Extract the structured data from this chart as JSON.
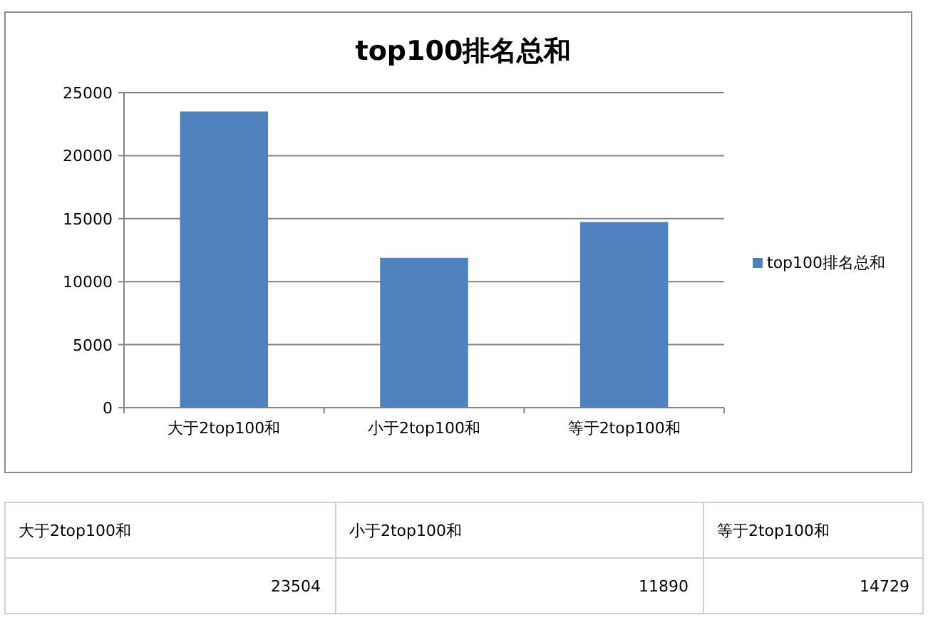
{
  "chart_data": {
    "type": "bar",
    "title": "top100排名总和",
    "categories": [
      "大于2top100和",
      "小于2top100和",
      "等于2top100和"
    ],
    "series": [
      {
        "name": "top100排名总和",
        "color": "#4f81bd",
        "values": [
          23504,
          11890,
          14729
        ]
      }
    ],
    "ylim": [
      0,
      25000
    ],
    "yticks": [
      0,
      5000,
      10000,
      15000,
      20000,
      25000
    ],
    "grid": "y",
    "legend": "right",
    "annotations": [
      "23504",
      "11890",
      "14729"
    ]
  }
}
